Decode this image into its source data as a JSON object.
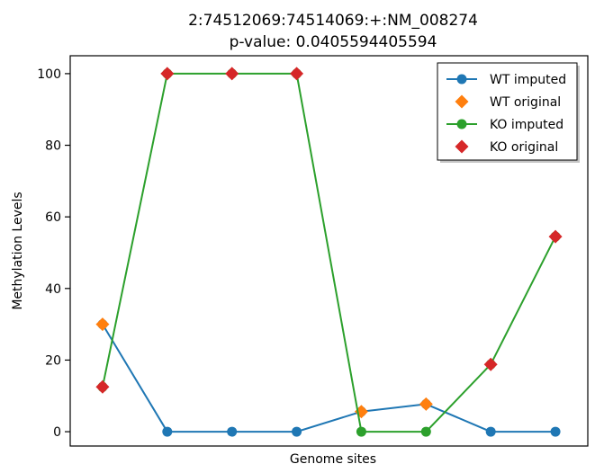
{
  "chart_data": {
    "type": "line",
    "title": "2:74512069:74514069:+:NM_008274",
    "subtitle": "p-value: 0.0405594405594",
    "xlabel": "Genome sites",
    "ylabel": "Methylation Levels",
    "ylim": [
      -4,
      105
    ],
    "yticks": [
      0,
      20,
      40,
      60,
      80,
      100
    ],
    "x": [
      1,
      2,
      3,
      4,
      5,
      6,
      7,
      8
    ],
    "xlim": [
      0.5,
      8.5
    ],
    "grid": false,
    "legend_position": "top-right",
    "series": [
      {
        "name": "WT imputed",
        "color": "#1f77b4",
        "marker": "circle",
        "line": true,
        "x": [
          1,
          2,
          3,
          4,
          5,
          6,
          7,
          8
        ],
        "values": [
          30,
          0,
          0,
          0,
          5.6,
          7.7,
          0,
          0
        ]
      },
      {
        "name": "WT original",
        "color": "#ff7f0e",
        "marker": "diamond",
        "line": false,
        "x": [
          1,
          5,
          6
        ],
        "values": [
          30,
          5.6,
          7.7
        ]
      },
      {
        "name": "KO imputed",
        "color": "#2ca02c",
        "marker": "circle",
        "line": true,
        "x": [
          1,
          2,
          3,
          4,
          5,
          6,
          7,
          8
        ],
        "values": [
          12.5,
          100,
          100,
          100,
          0,
          0,
          18.8,
          54.5
        ]
      },
      {
        "name": "KO original",
        "color": "#d62728",
        "marker": "diamond",
        "line": false,
        "x": [
          1,
          2,
          3,
          4,
          7,
          8
        ],
        "values": [
          12.5,
          100,
          100,
          100,
          18.8,
          54.5
        ]
      }
    ]
  }
}
